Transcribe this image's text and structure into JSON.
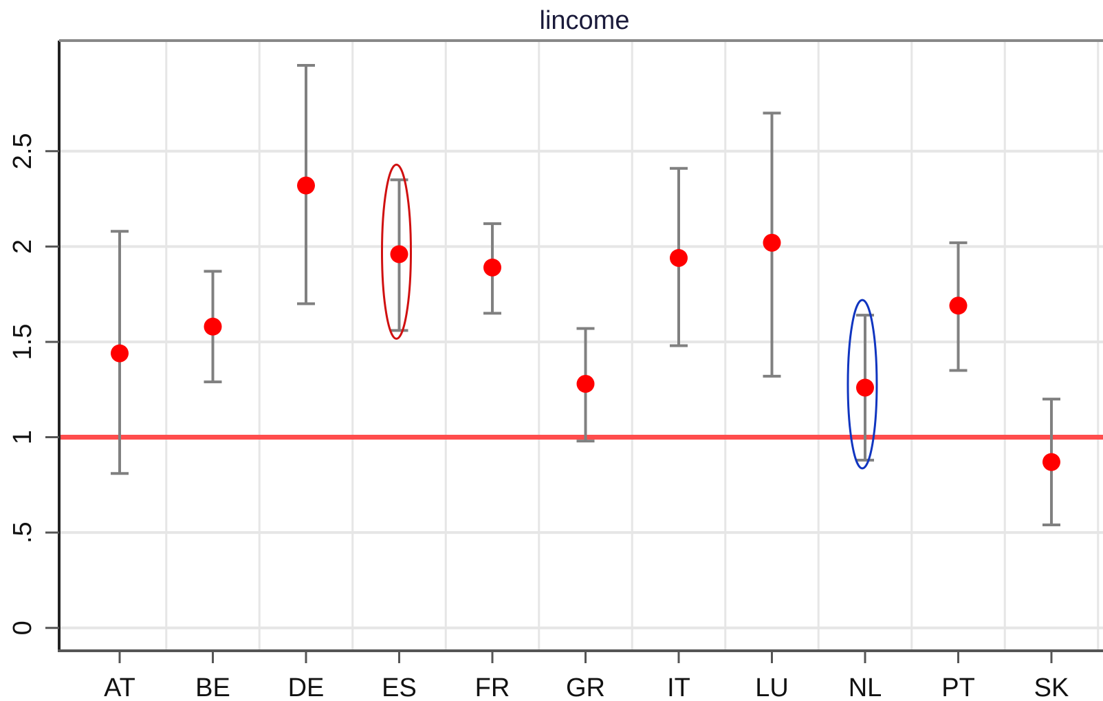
{
  "chart_data": {
    "type": "scatter",
    "title": "lincome",
    "xlabel": "",
    "ylabel": "",
    "categories": [
      "AT",
      "BE",
      "DE",
      "ES",
      "FR",
      "GR",
      "IT",
      "LU",
      "NL",
      "PT",
      "SK"
    ],
    "series": [
      {
        "values": [
          1.44,
          1.58,
          2.32,
          1.96,
          1.89,
          1.28,
          1.94,
          2.02,
          1.26,
          1.69,
          0.87
        ],
        "lower": [
          0.81,
          1.29,
          1.7,
          1.56,
          1.65,
          0.98,
          1.48,
          1.32,
          0.88,
          1.35,
          0.54
        ],
        "upper": [
          2.08,
          1.87,
          2.95,
          2.35,
          2.12,
          1.57,
          2.41,
          2.7,
          1.64,
          2.02,
          1.2
        ]
      }
    ],
    "yticks": [
      0,
      0.5,
      1,
      1.5,
      2,
      2.5
    ],
    "ytick_labels": [
      "0",
      ".5",
      "1",
      "1.5",
      "2",
      "2.5"
    ],
    "ylim": [
      -0.12,
      3.08
    ],
    "reference_line": {
      "y": 1,
      "color": "#ff4d4d"
    },
    "highlights": [
      {
        "category": "ES",
        "color": "#d01010"
      },
      {
        "category": "NL",
        "color": "#1035c0"
      }
    ],
    "grid": true,
    "colors": {
      "point": "#ff0000",
      "errorbar": "#808080",
      "grid": "#e6e6e6",
      "axis": "#222222"
    }
  }
}
